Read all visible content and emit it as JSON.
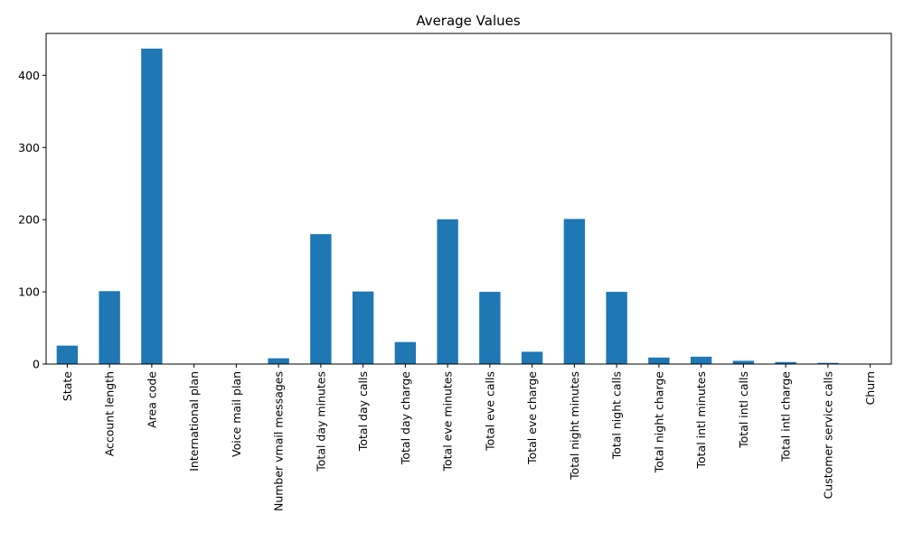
{
  "chart_data": {
    "type": "bar",
    "title": "Average Values",
    "xlabel": "",
    "ylabel": "",
    "categories": [
      "State",
      "Account length",
      "Area code",
      "International plan",
      "Voice mail plan",
      "Number vmail messages",
      "Total day minutes",
      "Total day calls",
      "Total day charge",
      "Total eve minutes",
      "Total eve calls",
      "Total eve charge",
      "Total night minutes",
      "Total night calls",
      "Total night charge",
      "Total intl minutes",
      "Total intl calls",
      "Total intl charge",
      "Customer service calls",
      "Churn"
    ],
    "values": [
      25.5,
      101,
      437,
      0.1,
      0.3,
      8,
      180,
      100.5,
      30.5,
      200.5,
      100,
      17,
      201,
      100,
      9,
      10.2,
      4.5,
      2.8,
      1.6,
      0.15
    ],
    "ylim": [
      0,
      458
    ],
    "yticks": [
      0,
      100,
      200,
      300,
      400
    ],
    "bar_color": "#1f77b4",
    "grid": false,
    "legend": "none"
  }
}
